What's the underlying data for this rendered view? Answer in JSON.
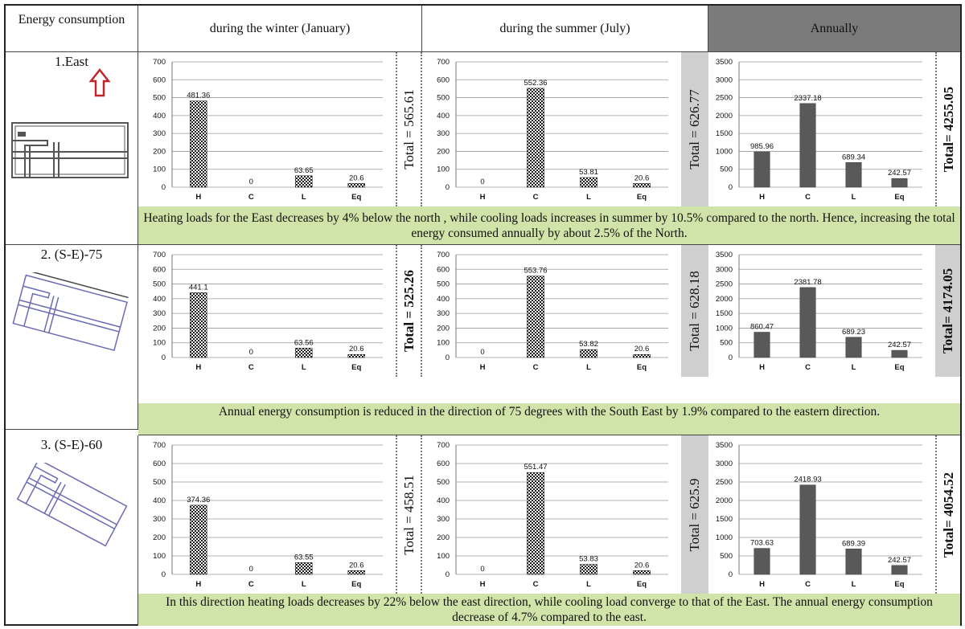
{
  "header": {
    "col0": "Energy consumption",
    "col1": "during the winter (January)",
    "col2": "during the summer (July)",
    "col3": "Annually"
  },
  "rows": [
    {
      "label": "1.East",
      "winter_total": "Total = 565.61",
      "summer_total": "Total = 626.77",
      "annual_total": "Total= 4255.05",
      "summary": "Heating loads for the East decreases by 4% below the north ,  while cooling loads increases in summer by 10.5% compared to the north. Hence, increasing the total energy consumed annually by about 2.5% of the North."
    },
    {
      "label": "2. (S-E)-75",
      "winter_total": "Total = 525.26",
      "summer_total": "Total = 628.18",
      "annual_total": "Total= 4174.05",
      "summary": "Annual energy consumption is reduced in the direction of 75 degrees with the South East by 1.9% compared to the eastern direction."
    },
    {
      "label": "3. (S-E)-60",
      "winter_total": "Total = 458.51",
      "summer_total": "Total = 625.9",
      "annual_total": "Total= 4054.52",
      "summary": "In this direction heating loads decreases by 22% below the east direction, while cooling load converge to that of the East. The annual energy consumption decrease of 4.7% compared to the east."
    }
  ],
  "colors": {
    "summary_bg": "#d0e3a8",
    "annual_header_bg": "#7b7b7b",
    "annual_total_bg": "#cfcfcf",
    "annual_bar": "#595959",
    "seasonal_bar": "#222222",
    "arrow": "#c0272d"
  },
  "chart_data": [
    {
      "type": "bar",
      "id": "r1-winter",
      "categories": [
        "H",
        "C",
        "L",
        "Eq"
      ],
      "values": [
        481.36,
        0,
        63.65,
        20.6
      ],
      "labels": [
        "481.36",
        "0",
        "63.65",
        "20.6"
      ],
      "ylim": [
        0,
        700
      ],
      "yticks": [
        "700",
        "600",
        "500",
        "400",
        "300",
        "200",
        "100",
        "0"
      ]
    },
    {
      "type": "bar",
      "id": "r1-summer",
      "categories": [
        "H",
        "C",
        "L",
        "Eq"
      ],
      "values": [
        0,
        552.36,
        53.81,
        20.6
      ],
      "labels": [
        "0",
        "552.36",
        "53.81",
        "20.6"
      ],
      "ylim": [
        0,
        700
      ],
      "yticks": [
        "700",
        "600",
        "500",
        "400",
        "300",
        "200",
        "100",
        "0"
      ]
    },
    {
      "type": "bar",
      "id": "r1-annual",
      "categories": [
        "H",
        "C",
        "L",
        "Eq"
      ],
      "values": [
        985.96,
        2337.18,
        689.34,
        242.57
      ],
      "labels": [
        "985.96",
        "2337.18",
        "689.34",
        "242.57"
      ],
      "ylim": [
        0,
        3500
      ],
      "yticks": [
        "3500",
        "3000",
        "2500",
        "2000",
        "1500",
        "1000",
        "500",
        "0"
      ]
    },
    {
      "type": "bar",
      "id": "r2-winter",
      "categories": [
        "H",
        "C",
        "L",
        "Eq"
      ],
      "values": [
        441.1,
        0,
        63.56,
        20.6
      ],
      "labels": [
        "441.1",
        "0",
        "63.56",
        "20.6"
      ],
      "ylim": [
        0,
        700
      ],
      "yticks": [
        "700",
        "600",
        "500",
        "400",
        "300",
        "200",
        "100",
        "0"
      ]
    },
    {
      "type": "bar",
      "id": "r2-summer",
      "categories": [
        "H",
        "C",
        "L",
        "Eq"
      ],
      "values": [
        0,
        553.76,
        53.82,
        20.6
      ],
      "labels": [
        "0",
        "553.76",
        "53.82",
        "20.6"
      ],
      "ylim": [
        0,
        700
      ],
      "yticks": [
        "700",
        "600",
        "500",
        "400",
        "300",
        "200",
        "100",
        "0"
      ]
    },
    {
      "type": "bar",
      "id": "r2-annual",
      "categories": [
        "H",
        "C",
        "L",
        "Eq"
      ],
      "values": [
        860.47,
        2381.78,
        689.23,
        242.57
      ],
      "labels": [
        "860.47",
        "2381.78",
        "689.23",
        "242.57"
      ],
      "ylim": [
        0,
        3500
      ],
      "yticks": [
        "3500",
        "3000",
        "2500",
        "2000",
        "1500",
        "1000",
        "500",
        "0"
      ]
    },
    {
      "type": "bar",
      "id": "r3-winter",
      "categories": [
        "H",
        "C",
        "L",
        "Eq"
      ],
      "values": [
        374.36,
        0,
        63.55,
        20.6
      ],
      "labels": [
        "374.36",
        "0",
        "63.55",
        "20.6"
      ],
      "ylim": [
        0,
        700
      ],
      "yticks": [
        "700",
        "600",
        "500",
        "400",
        "300",
        "200",
        "100",
        "0"
      ]
    },
    {
      "type": "bar",
      "id": "r3-summer",
      "categories": [
        "H",
        "C",
        "L",
        "Eq"
      ],
      "values": [
        0,
        551.47,
        53.83,
        20.6
      ],
      "labels": [
        "0",
        "551.47",
        "53.83",
        "20.6"
      ],
      "ylim": [
        0,
        700
      ],
      "yticks": [
        "700",
        "600",
        "500",
        "400",
        "300",
        "200",
        "100",
        "0"
      ]
    },
    {
      "type": "bar",
      "id": "r3-annual",
      "categories": [
        "H",
        "C",
        "L",
        "Eq"
      ],
      "values": [
        703.63,
        2418.93,
        689.39,
        242.57
      ],
      "labels": [
        "703.63",
        "2418.93",
        "689.39",
        "242.57"
      ],
      "ylim": [
        0,
        3500
      ],
      "yticks": [
        "3500",
        "3000",
        "2500",
        "2000",
        "1500",
        "1000",
        "500",
        "0"
      ]
    }
  ]
}
